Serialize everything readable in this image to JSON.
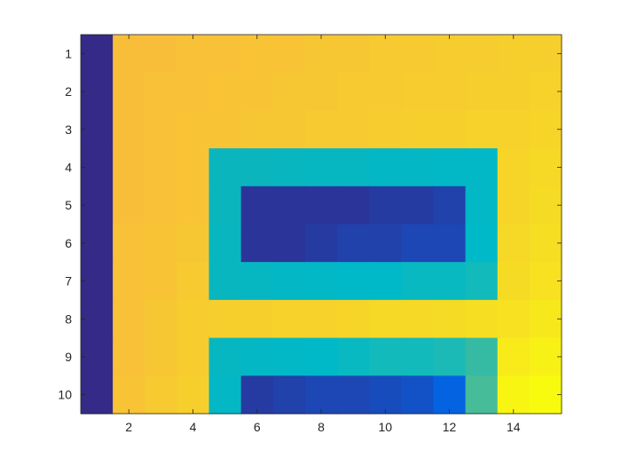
{
  "chart_data": {
    "type": "heatmap",
    "title": "",
    "xlabel": "",
    "ylabel": "",
    "xlim": [
      0.5,
      15.5
    ],
    "ylim": [
      0.5,
      10.5
    ],
    "y_direction": "reverse",
    "x_ticks": [
      2,
      4,
      6,
      8,
      10,
      12,
      14
    ],
    "y_ticks": [
      1,
      2,
      3,
      4,
      5,
      6,
      7,
      8,
      9,
      10
    ],
    "colormap": "parula",
    "clim": [
      0,
      1
    ],
    "grid": false,
    "legend": "none",
    "values": [
      [
        0.0,
        0.8,
        0.8,
        0.81,
        0.81,
        0.82,
        0.82,
        0.83,
        0.83,
        0.84,
        0.84,
        0.85,
        0.85,
        0.86,
        0.86
      ],
      [
        0.0,
        0.8,
        0.81,
        0.81,
        0.82,
        0.82,
        0.83,
        0.83,
        0.84,
        0.84,
        0.85,
        0.85,
        0.86,
        0.86,
        0.87
      ],
      [
        0.0,
        0.8,
        0.81,
        0.82,
        0.82,
        0.83,
        0.83,
        0.84,
        0.84,
        0.85,
        0.86,
        0.86,
        0.87,
        0.87,
        0.88
      ],
      [
        0.0,
        0.8,
        0.81,
        0.82,
        0.45,
        0.45,
        0.46,
        0.47,
        0.47,
        0.48,
        0.48,
        0.49,
        0.49,
        0.88,
        0.89
      ],
      [
        0.0,
        0.8,
        0.81,
        0.82,
        0.45,
        0.02,
        0.02,
        0.02,
        0.02,
        0.03,
        0.03,
        0.04,
        0.49,
        0.88,
        0.9
      ],
      [
        0.0,
        0.81,
        0.82,
        0.83,
        0.46,
        0.02,
        0.02,
        0.03,
        0.04,
        0.04,
        0.05,
        0.05,
        0.5,
        0.89,
        0.91
      ],
      [
        0.0,
        0.81,
        0.82,
        0.84,
        0.46,
        0.47,
        0.48,
        0.49,
        0.5,
        0.5,
        0.51,
        0.51,
        0.52,
        0.9,
        0.92
      ],
      [
        0.0,
        0.81,
        0.83,
        0.85,
        0.86,
        0.86,
        0.87,
        0.87,
        0.88,
        0.89,
        0.89,
        0.9,
        0.91,
        0.92,
        0.94
      ],
      [
        0.0,
        0.81,
        0.83,
        0.85,
        0.47,
        0.48,
        0.49,
        0.5,
        0.51,
        0.52,
        0.52,
        0.53,
        0.56,
        0.95,
        0.97
      ],
      [
        0.0,
        0.82,
        0.84,
        0.86,
        0.48,
        0.03,
        0.04,
        0.05,
        0.05,
        0.06,
        0.07,
        0.1,
        0.58,
        0.98,
        1.0
      ]
    ]
  }
}
